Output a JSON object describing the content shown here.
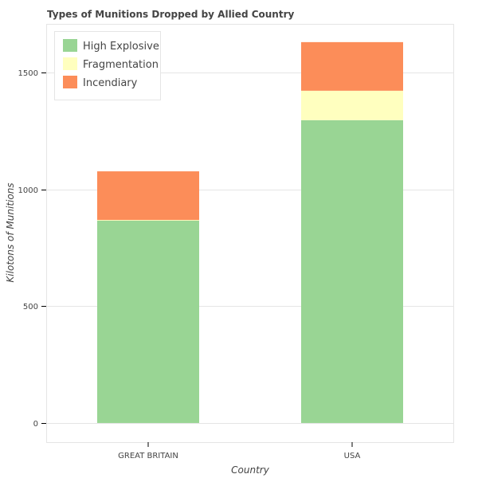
{
  "chart_data": {
    "type": "bar",
    "stacked": true,
    "title": "Types of Munitions Dropped by Allied Country",
    "xlabel": "Country",
    "ylabel": "Kilotons of Munitions",
    "categories": [
      "GREAT BRITAIN",
      "USA"
    ],
    "series": [
      {
        "name": "High Explosive",
        "color": "#99d594",
        "values": [
          866,
          1296
        ]
      },
      {
        "name": "Fragmentation",
        "color": "#ffffbf",
        "values": [
          3,
          126
        ]
      },
      {
        "name": "Incendiary",
        "color": "#fc8d59",
        "values": [
          208,
          208
        ]
      }
    ],
    "ylim": [
      -82,
      1708
    ],
    "yticks": [
      0,
      500,
      1000,
      1500
    ],
    "grid": true,
    "legend": "top-left"
  }
}
